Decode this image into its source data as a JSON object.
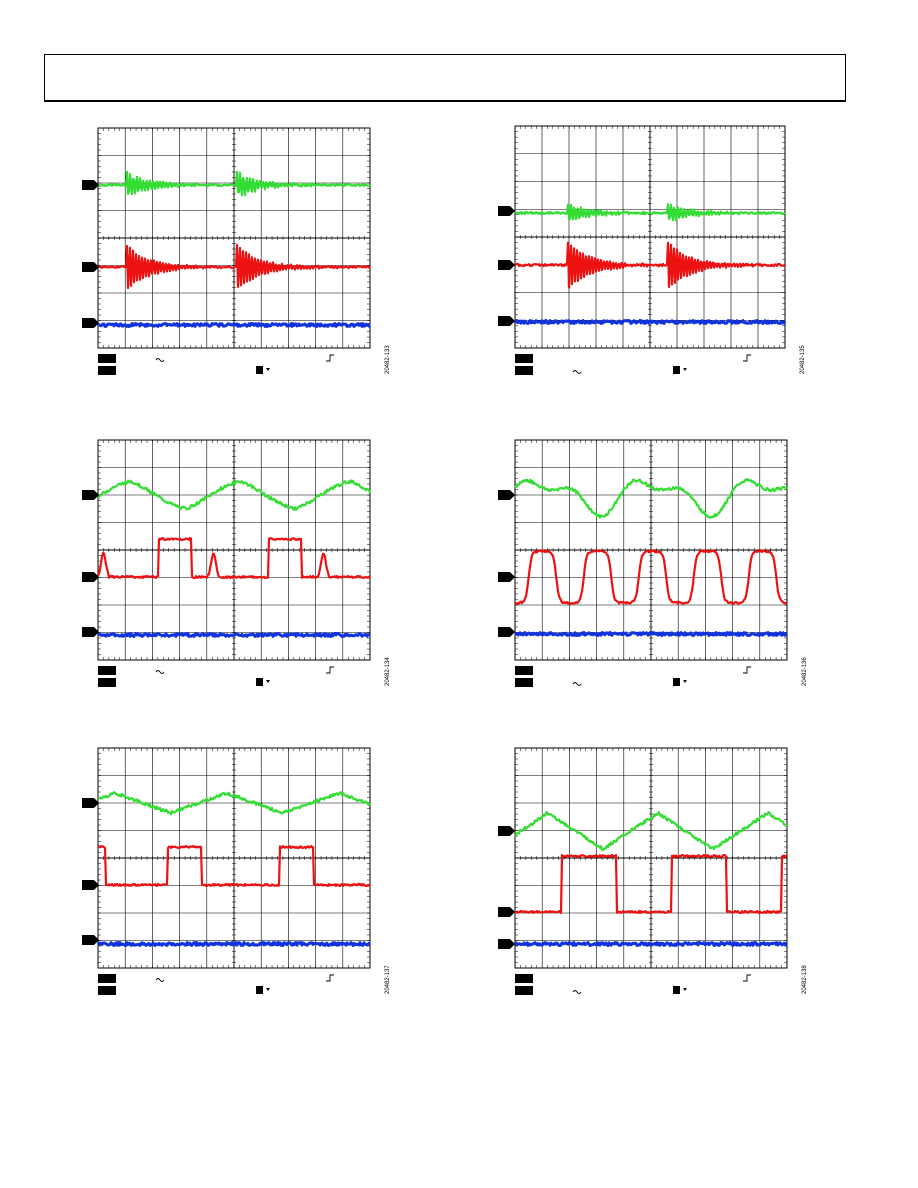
{
  "page": {
    "header_box": ""
  },
  "colors": {
    "ch1": "#33dd33",
    "ch2": "#ee1111",
    "ch3": "#1133dd",
    "grid": "#000000"
  },
  "icons": {
    "ground_marker": "right-arrow-marker",
    "coupling": "tilde-symbol",
    "trigger": "rising-edge-symbol"
  },
  "panels": [
    {
      "id": "fig-133",
      "figure_id": "20482-133",
      "wave": "ringing-left"
    },
    {
      "id": "fig-135",
      "figure_id": "20482-135",
      "wave": "ringing-right"
    },
    {
      "id": "fig-134",
      "figure_id": "20482-134",
      "wave": "pulse-a"
    },
    {
      "id": "fig-136",
      "figure_id": "20482-136",
      "wave": "pulse-b"
    },
    {
      "id": "fig-137",
      "figure_id": "20482-137",
      "wave": "square-a"
    },
    {
      "id": "fig-138",
      "figure_id": "20482-138",
      "wave": "square-b"
    }
  ],
  "chart_data": [
    {
      "type": "line",
      "series": [
        {
          "values": []
        },
        {
          "values": []
        },
        {
          "values": []
        }
      ],
      "grid": true,
      "grid_divisions": [
        10,
        8
      ]
    },
    {
      "type": "line",
      "series": [
        {
          "values": []
        },
        {
          "values": []
        },
        {
          "values": []
        }
      ],
      "grid": true,
      "grid_divisions": [
        10,
        8
      ]
    },
    {
      "type": "line",
      "series": [
        {
          "values": []
        },
        {
          "values": []
        },
        {
          "values": []
        }
      ],
      "grid": true,
      "grid_divisions": [
        10,
        8
      ]
    },
    {
      "type": "line",
      "series": [
        {
          "values": []
        },
        {
          "values": []
        },
        {
          "values": []
        }
      ],
      "grid": true,
      "grid_divisions": [
        10,
        8
      ]
    },
    {
      "type": "line",
      "series": [
        {
          "values": []
        },
        {
          "values": []
        },
        {
          "values": []
        }
      ],
      "grid": true,
      "grid_divisions": [
        10,
        8
      ]
    },
    {
      "type": "line",
      "series": [
        {
          "values": []
        },
        {
          "values": []
        },
        {
          "values": []
        }
      ],
      "grid": true,
      "grid_divisions": [
        10,
        8
      ]
    }
  ]
}
